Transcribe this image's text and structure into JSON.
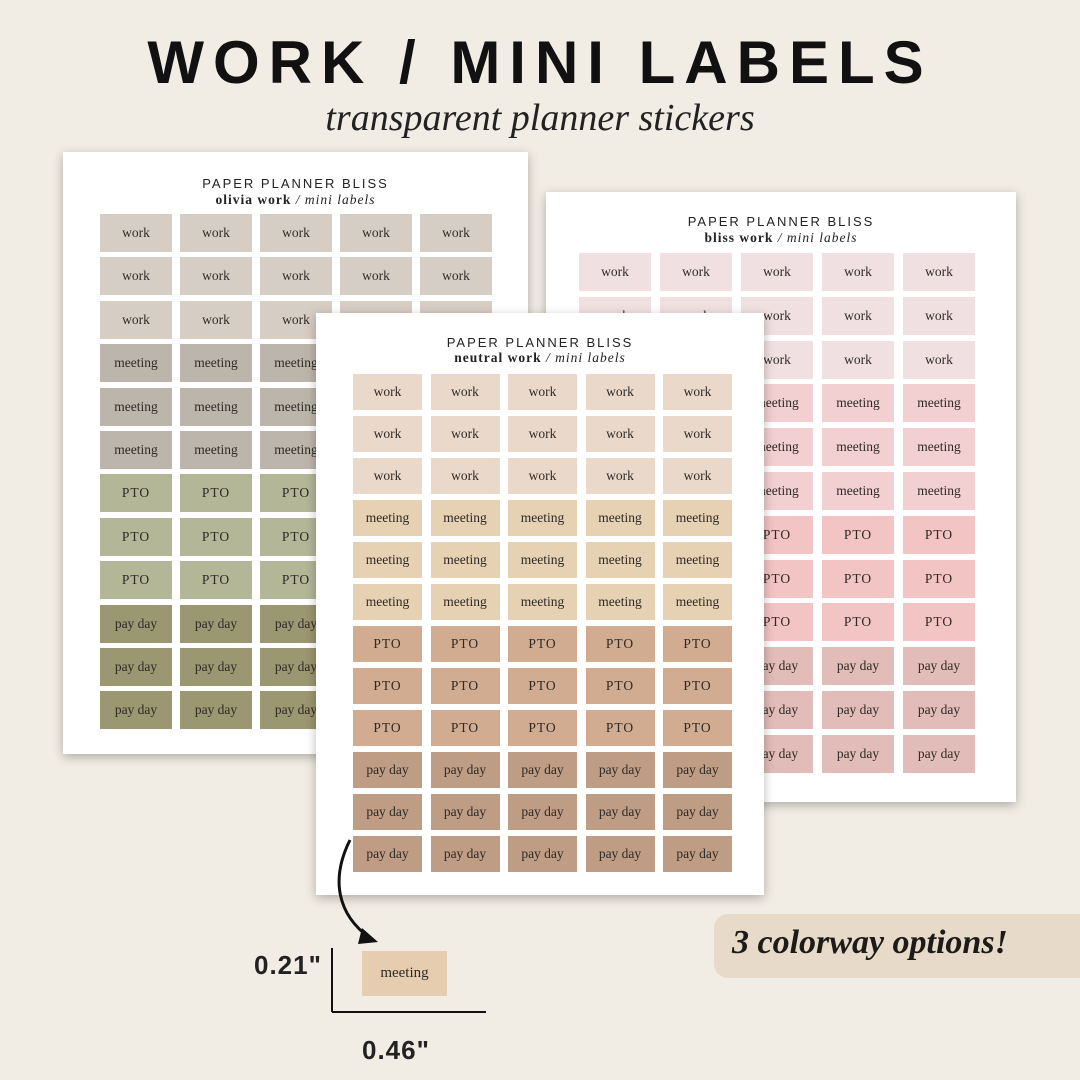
{
  "title": "WORK / MINI LABELS",
  "subtitle": "transparent planner stickers",
  "callout": "3 colorway options!",
  "dimensions": {
    "height": "0.21\"",
    "width": "0.46\"",
    "sample_label": "meeting"
  },
  "sheets": [
    {
      "id": "olivia",
      "brand": "PAPER PLANNER BLISS",
      "name": "olivia work",
      "suffix": " / mini labels",
      "rows": [
        {
          "label": "work",
          "color": "#d6cdc5",
          "count": 3
        },
        {
          "label": "meeting",
          "color": "#bcb5ab",
          "count": 3
        },
        {
          "label": "PTO",
          "color": "#b4b698",
          "count": 3
        },
        {
          "label": "pay day",
          "color": "#9b9770",
          "count": 3
        }
      ]
    },
    {
      "id": "bliss",
      "brand": "PAPER PLANNER BLISS",
      "name": "bliss work",
      "suffix": " / mini labels",
      "rows": [
        {
          "label": "work",
          "color": "#f0e0e1",
          "count": 3
        },
        {
          "label": "meeting",
          "color": "#f2cfd0",
          "count": 3
        },
        {
          "label": "PTO",
          "color": "#f2c4c3",
          "count": 3
        },
        {
          "label": "pay day",
          "color": "#e2bcb9",
          "count": 3
        }
      ]
    },
    {
      "id": "neutral",
      "brand": "PAPER PLANNER BLISS",
      "name": "neutral work",
      "suffix": " / mini labels",
      "rows": [
        {
          "label": "work",
          "color": "#ead8ca",
          "count": 3
        },
        {
          "label": "meeting",
          "color": "#e6d1b3",
          "count": 3
        },
        {
          "label": "PTO",
          "color": "#d2ac90",
          "count": 3
        },
        {
          "label": "pay day",
          "color": "#bf9c84",
          "count": 3
        }
      ]
    }
  ]
}
